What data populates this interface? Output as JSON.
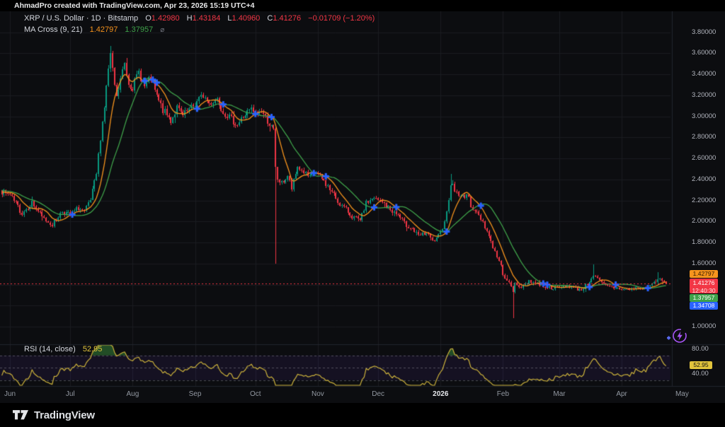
{
  "attribution": "AhmadPro created with TradingView.com, Apr 23, 2026 15:19 UTC+4",
  "symbol_legend": {
    "title": "XRP / U.S. Dollar · 1D · Bitstamp",
    "o_label": "O",
    "o": "1.42980",
    "h_label": "H",
    "h": "1.43184",
    "l_label": "L",
    "l": "1.40960",
    "c_label": "C",
    "c": "1.41276",
    "change": "−0.01709 (−1.20%)"
  },
  "ma_legend": {
    "title": "MA Cross (9, 21)",
    "fast_value": "1.42797",
    "slow_value": "1.37957"
  },
  "rsi_legend": {
    "title": "RSI (14, close)",
    "value": "52.95"
  },
  "price_scale": {
    "badges": {
      "ma_fast": "1.42797",
      "price": "1.41276",
      "countdown": "12:40:30",
      "ma_slow": "1.37957",
      "cross": "1.34708"
    }
  },
  "rsi_scale": {
    "badge": "52.95"
  },
  "footer": {
    "brand": "TradingView"
  },
  "icons": {
    "eye": "⌀",
    "lightning": "⚡",
    "ma_cross_marker": "plus-cross"
  },
  "colors": {
    "bg": "#000000",
    "chart_bg": "#0c0d10",
    "grid": "#1a1c21",
    "up": "#089981",
    "down": "#f23645",
    "ma_fast": "#f7941d",
    "ma_slow": "#3fa24a",
    "marker": "#2962ff",
    "rsi_line": "#cdb33c",
    "rsi_badge": "#e2c43c",
    "rsi_fill": "rgba(56,142,60,0.5)",
    "band_fill": "rgba(124,77,255,0.08)",
    "dashed": "rgba(178,181,190,0.38)",
    "price_line": "#f23645",
    "separator": "#21242c",
    "axis_text": "#b2b5be",
    "text": "#d5d8df",
    "muted": "#787b86",
    "month_text": "#9298a1",
    "bold_month": "#e6e8ec",
    "footer_text": "#dde0e4",
    "attr_text": "#e8e9ea",
    "boost_purple": "#a855f7",
    "boost_blue": "#5b6cf5"
  },
  "chart_data": {
    "type": "candlestick",
    "title": "XRP / U.S. Dollar · 1D · Bitstamp",
    "symbol": "XRP/USD",
    "timeframe": "1D",
    "exchange": "Bitstamp",
    "seed": 7,
    "legend_position": "top-left",
    "grid": true,
    "last_candle": {
      "open": 1.4298,
      "high": 1.43184,
      "low": 1.4096,
      "close": 1.41276,
      "change": -0.01709,
      "change_pct": -1.2
    },
    "indicators": {
      "ma_cross": {
        "fast": 9,
        "slow": 21,
        "fast_value": 1.42797,
        "slow_value": 1.37957,
        "cross_value": 1.34708
      },
      "rsi": {
        "period": 14,
        "source": "close",
        "value": 52.95,
        "levels": [
          70,
          50,
          30
        ]
      }
    },
    "y_axis": {
      "min": 1.0,
      "max": 3.9,
      "tick_step": 0.2,
      "ticks": [
        "3.80000",
        "3.60000",
        "3.40000",
        "3.20000",
        "3.00000",
        "2.80000",
        "2.60000",
        "2.40000",
        "2.20000",
        "2.00000",
        "1.80000",
        "1.60000",
        "1.40000",
        "1.20000",
        "1.00000"
      ],
      "tick_values": [
        3.8,
        3.6,
        3.4,
        3.2,
        3.0,
        2.8,
        2.6,
        2.4,
        2.2,
        2.0,
        1.8,
        1.6,
        1.4,
        1.2,
        1.0
      ]
    },
    "rsi_axis": {
      "ticks": [
        "80.00",
        "40.00"
      ],
      "tick_values": [
        80,
        40
      ]
    },
    "months": [
      {
        "label": "Jun",
        "day": 4
      },
      {
        "label": "Jul",
        "day": 34
      },
      {
        "label": "Aug",
        "day": 65
      },
      {
        "label": "Sep",
        "day": 96
      },
      {
        "label": "Oct",
        "day": 126
      },
      {
        "label": "Nov",
        "day": 157
      },
      {
        "label": "Dec",
        "day": 187
      },
      {
        "label": "2026",
        "day": 218,
        "bold": true
      },
      {
        "label": "Feb",
        "day": 249
      },
      {
        "label": "Mar",
        "day": 277
      },
      {
        "label": "Apr",
        "day": 308
      },
      {
        "label": "May",
        "day": 338
      }
    ],
    "day_span": {
      "first": -28,
      "last": 330
    },
    "keyframes": [
      [
        -28,
        2.42
      ],
      [
        -14,
        2.3
      ],
      [
        0,
        2.28
      ],
      [
        4,
        2.25
      ],
      [
        10,
        2.08
      ],
      [
        15,
        2.18
      ],
      [
        20,
        2.04
      ],
      [
        25,
        1.97
      ],
      [
        30,
        2.1
      ],
      [
        34,
        2.06
      ],
      [
        38,
        2.13
      ],
      [
        41,
        2.09
      ],
      [
        44,
        2.2
      ],
      [
        47,
        2.45
      ],
      [
        49,
        2.8
      ],
      [
        51,
        3.1
      ],
      [
        53,
        3.45
      ],
      [
        54,
        3.58
      ],
      [
        55,
        3.42
      ],
      [
        57,
        3.17
      ],
      [
        59,
        3.35
      ],
      [
        61,
        3.5
      ],
      [
        63,
        3.32
      ],
      [
        65,
        3.28
      ],
      [
        68,
        3.42
      ],
      [
        71,
        3.28
      ],
      [
        74,
        3.36
      ],
      [
        77,
        3.18
      ],
      [
        80,
        3.06
      ],
      [
        84,
        2.96
      ],
      [
        87,
        3.08
      ],
      [
        90,
        3.0
      ],
      [
        93,
        3.06
      ],
      [
        96,
        3.12
      ],
      [
        100,
        3.2
      ],
      [
        103,
        3.12
      ],
      [
        107,
        3.17
      ],
      [
        110,
        3.05
      ],
      [
        114,
        2.97
      ],
      [
        117,
        2.92
      ],
      [
        121,
        3.02
      ],
      [
        124,
        3.06
      ],
      [
        126,
        3.02
      ],
      [
        129,
        3.05
      ],
      [
        132,
        2.96
      ],
      [
        135,
        2.86
      ],
      [
        136,
        2.5
      ],
      [
        137,
        2.4
      ],
      [
        139,
        2.36
      ],
      [
        142,
        2.43
      ],
      [
        144,
        2.31
      ],
      [
        147,
        2.52
      ],
      [
        150,
        2.47
      ],
      [
        153,
        2.41
      ],
      [
        156,
        2.47
      ],
      [
        158,
        2.42
      ],
      [
        161,
        2.36
      ],
      [
        164,
        2.28
      ],
      [
        167,
        2.19
      ],
      [
        171,
        2.11
      ],
      [
        174,
        2.05
      ],
      [
        178,
        2.0
      ],
      [
        181,
        2.17
      ],
      [
        184,
        2.22
      ],
      [
        187,
        2.2
      ],
      [
        190,
        2.17
      ],
      [
        193,
        2.11
      ],
      [
        197,
        2.06
      ],
      [
        200,
        1.98
      ],
      [
        204,
        1.93
      ],
      [
        207,
        1.86
      ],
      [
        211,
        1.89
      ],
      [
        214,
        1.81
      ],
      [
        216,
        1.83
      ],
      [
        218,
        1.89
      ],
      [
        221,
        2.08
      ],
      [
        223,
        2.37
      ],
      [
        225,
        2.3
      ],
      [
        228,
        2.23
      ],
      [
        231,
        2.26
      ],
      [
        233,
        2.16
      ],
      [
        236,
        2.08
      ],
      [
        239,
        2.0
      ],
      [
        242,
        1.86
      ],
      [
        245,
        1.71
      ],
      [
        248,
        1.57
      ],
      [
        249,
        1.51
      ],
      [
        251,
        1.43
      ],
      [
        253,
        1.39
      ],
      [
        254,
        1.33
      ],
      [
        255,
        1.41
      ],
      [
        257,
        1.39
      ],
      [
        259,
        1.38
      ],
      [
        262,
        1.44
      ],
      [
        266,
        1.41
      ],
      [
        270,
        1.38
      ],
      [
        273,
        1.37
      ],
      [
        277,
        1.37
      ],
      [
        281,
        1.39
      ],
      [
        284,
        1.37
      ],
      [
        288,
        1.35
      ],
      [
        291,
        1.41
      ],
      [
        294,
        1.49
      ],
      [
        297,
        1.43
      ],
      [
        300,
        1.39
      ],
      [
        304,
        1.37
      ],
      [
        308,
        1.36
      ],
      [
        312,
        1.35
      ],
      [
        315,
        1.37
      ],
      [
        319,
        1.36
      ],
      [
        322,
        1.39
      ],
      [
        326,
        1.45
      ],
      [
        328,
        1.43
      ],
      [
        330,
        1.41276
      ]
    ],
    "events": [
      {
        "day": 54,
        "high": 3.67
      },
      {
        "day": 136,
        "low": 1.6
      },
      {
        "day": 223,
        "high": 2.45
      },
      {
        "day": 254,
        "low": 1.08,
        "close": 1.33
      },
      {
        "day": 294,
        "high": 1.59
      },
      {
        "day": 326,
        "high": 1.52
      }
    ]
  }
}
